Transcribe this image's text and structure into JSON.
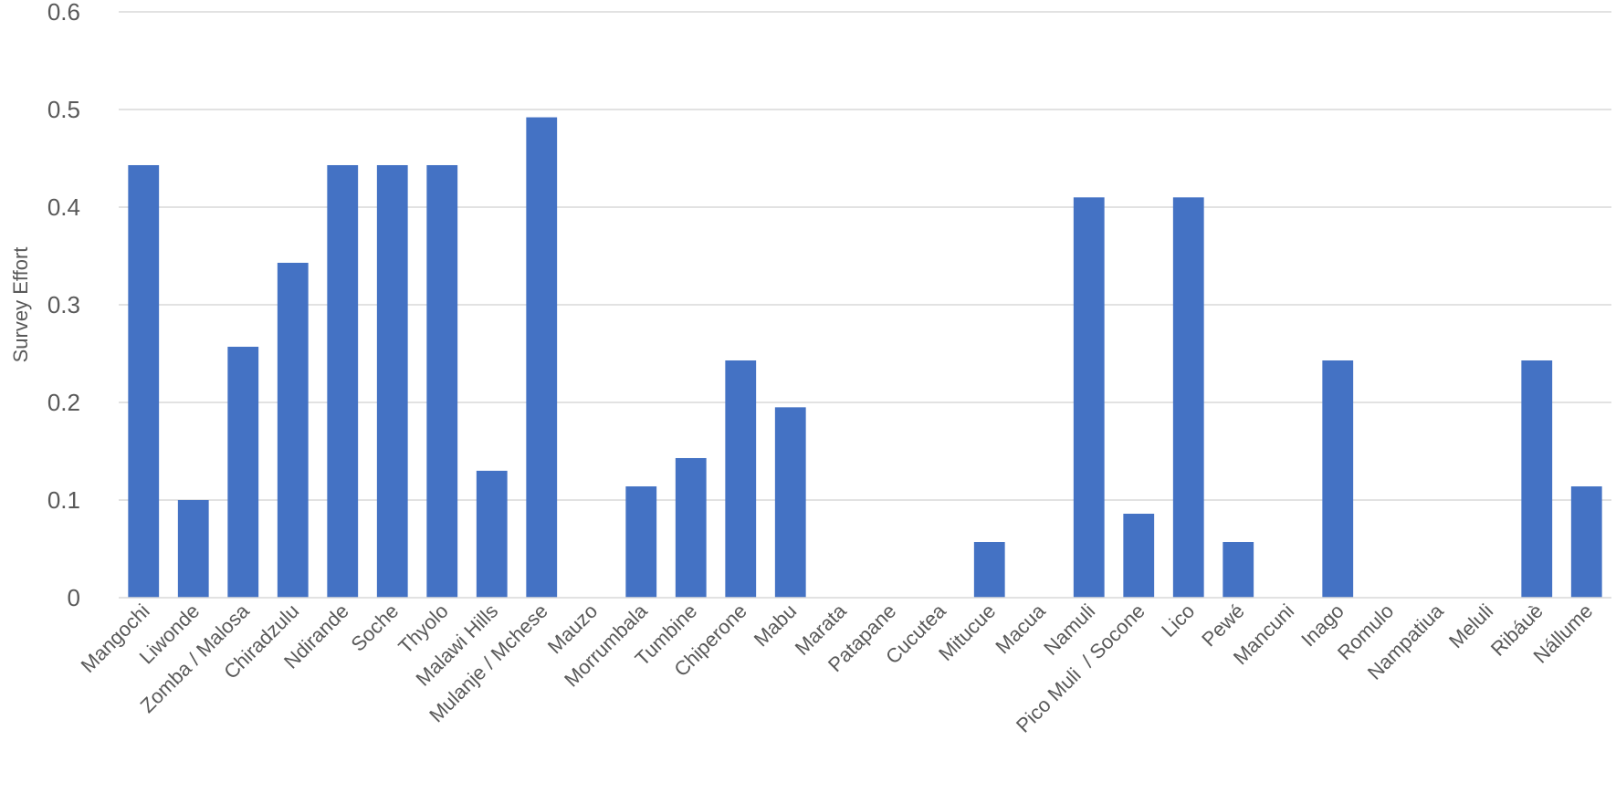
{
  "chart_data": {
    "type": "bar",
    "title": "",
    "xlabel": "",
    "ylabel": "Survey Effort",
    "ylim": [
      0,
      0.6
    ],
    "yticks": [
      "0",
      "0.1",
      "0.2",
      "0.3",
      "0.4",
      "0.5",
      "0.6"
    ],
    "grid": true,
    "bar_color": "#4472C4",
    "categories": [
      "Mangochi",
      "Liwonde",
      "Zomba / Malosa",
      "Chiradzulu",
      "Ndirande",
      "Soche",
      "Thyolo",
      "Malawi Hills",
      "Mulanje / Mchese",
      "Mauzo",
      "Morrumbala",
      "Tumbine",
      "Chiperone",
      "Mabu",
      "Marata",
      "Patapane",
      "Cucutea",
      "Mitucue",
      "Macua",
      "Namuli",
      "Pico Muli  / Socone",
      "Lico",
      "Pewé",
      "Mancuni",
      "Inago",
      "Romulo",
      "Nampatiua",
      "Meluli",
      "Ribáuè",
      "Nállume"
    ],
    "values": [
      0.443,
      0.1,
      0.257,
      0.343,
      0.443,
      0.443,
      0.443,
      0.13,
      0.492,
      0,
      0.114,
      0.143,
      0.243,
      0.195,
      0,
      0,
      0,
      0.057,
      0,
      0.41,
      0.086,
      0.41,
      0.057,
      0,
      0.243,
      0,
      0,
      0,
      0.243,
      0.114
    ]
  }
}
